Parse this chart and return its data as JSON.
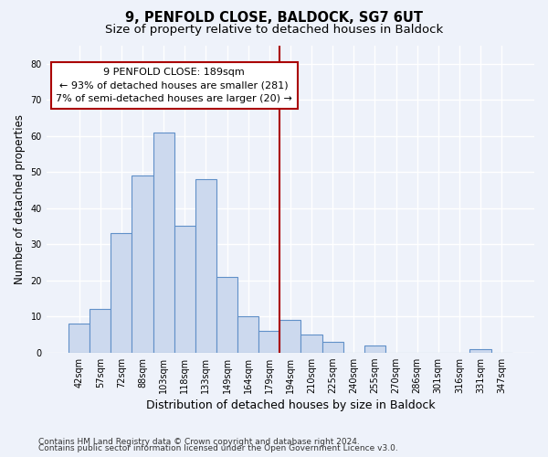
{
  "title1": "9, PENFOLD CLOSE, BALDOCK, SG7 6UT",
  "title2": "Size of property relative to detached houses in Baldock",
  "xlabel": "Distribution of detached houses by size in Baldock",
  "ylabel": "Number of detached properties",
  "bar_labels": [
    "42sqm",
    "57sqm",
    "72sqm",
    "88sqm",
    "103sqm",
    "118sqm",
    "133sqm",
    "149sqm",
    "164sqm",
    "179sqm",
    "194sqm",
    "210sqm",
    "225sqm",
    "240sqm",
    "255sqm",
    "270sqm",
    "286sqm",
    "301sqm",
    "316sqm",
    "331sqm",
    "347sqm"
  ],
  "bar_heights": [
    8,
    12,
    33,
    49,
    61,
    35,
    48,
    21,
    10,
    6,
    9,
    5,
    3,
    0,
    2,
    0,
    0,
    0,
    0,
    1,
    0
  ],
  "bar_color": "#ccd9ee",
  "bar_edge_color": "#6090c8",
  "vline_x": 9.5,
  "vline_color": "#aa0000",
  "annotation_line1": "9 PENFOLD CLOSE: 189sqm",
  "annotation_line2": "← 93% of detached houses are smaller (281)",
  "annotation_line3": "7% of semi-detached houses are larger (20) →",
  "annotation_box_color": "#ffffff",
  "annotation_box_edge": "#aa0000",
  "ylim": [
    0,
    85
  ],
  "yticks": [
    0,
    10,
    20,
    30,
    40,
    50,
    60,
    70,
    80
  ],
  "background_color": "#eef2fa",
  "grid_color": "#ffffff",
  "footer1": "Contains HM Land Registry data © Crown copyright and database right 2024.",
  "footer2": "Contains public sector information licensed under the Open Government Licence v3.0.",
  "title_fontsize": 10.5,
  "subtitle_fontsize": 9.5,
  "tick_fontsize": 7,
  "ylabel_fontsize": 8.5,
  "xlabel_fontsize": 9,
  "annotation_fontsize": 8,
  "footer_fontsize": 6.5
}
